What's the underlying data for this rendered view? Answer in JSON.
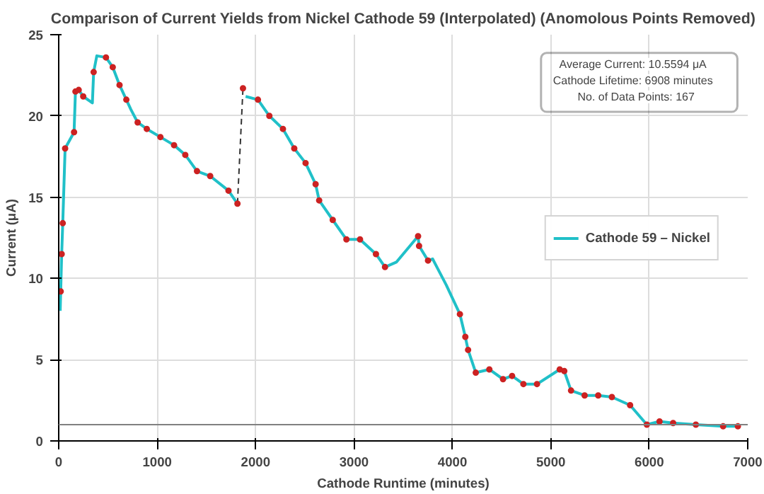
{
  "chart_data": {
    "type": "line",
    "title": "Comparison of Current Yields from Nickel Cathode 59 (Interpolated) (Anomolous Points Removed)",
    "xlabel": "Cathode Runtime (minutes)",
    "ylabel": "Current (μA)",
    "xlim": [
      0,
      7000
    ],
    "ylim": [
      0,
      25
    ],
    "xticks": [
      0,
      1000,
      2000,
      3000,
      4000,
      5000,
      6000,
      7000
    ],
    "yticks": [
      0,
      5,
      10,
      15,
      20,
      25
    ],
    "grid": true,
    "legend": "right",
    "line_style": "solid",
    "marker": "none",
    "annotations": [
      "Average Current:   10.5594   μA",
      "Cathode Lifetime:   6908   minutes",
      "No. of Data Points:   167"
    ],
    "ref_lines": [
      {
        "axis": "y",
        "value": 1,
        "color": "#808080"
      }
    ],
    "series": [
      {
        "name": "Cathode 59 – Nickel",
        "color": "#20c0c8",
        "x": [
          15,
          20,
          30,
          41,
          65,
          156,
          170,
          203,
          249,
          342,
          355,
          387,
          480,
          549,
          618,
          687,
          733,
          802,
          895,
          1033,
          1172,
          1286,
          1405,
          1539,
          1725,
          1816,
          1872,
          1899,
          2024,
          2140,
          2278,
          2393,
          2508,
          2610,
          2646,
          2784,
          2923,
          3061,
          3223,
          3315,
          3430,
          3651,
          3661,
          3752,
          3799,
          3937,
          4076,
          4131,
          4159,
          4237,
          4375,
          4514,
          4606,
          4721,
          4859,
          5090,
          5136,
          5205,
          5343,
          5481,
          5620,
          5805,
          5975,
          6104,
          6242,
          6473,
          6750,
          6900
        ],
        "values": [
          8,
          9.2,
          11.5,
          13.4,
          18.0,
          19.0,
          21.5,
          21.6,
          21.2,
          20.8,
          22.7,
          23.7,
          23.6,
          23.0,
          21.9,
          21.0,
          20.4,
          19.6,
          19.2,
          18.7,
          18.2,
          17.6,
          16.6,
          16.3,
          15.4,
          14.6,
          null,
          21.2,
          21.0,
          20.0,
          19.2,
          18.0,
          17.1,
          15.8,
          14.8,
          13.6,
          12.4,
          12.4,
          11.5,
          10.7,
          11.0,
          12.6,
          12.0,
          11.1,
          11.2,
          9.6,
          7.8,
          6.4,
          5.6,
          4.2,
          4.4,
          3.8,
          4.0,
          3.5,
          3.5,
          4.4,
          4.3,
          3.1,
          2.8,
          2.8,
          2.7,
          2.2,
          1.0,
          1.2,
          1.1,
          1.0,
          0.9,
          0.9
        ]
      },
      {
        "type": "line",
        "color": "#333333",
        "line_style": "dashed",
        "x": [
          1816,
          1872
        ],
        "values": [
          14.6,
          21.7
        ]
      },
      {
        "type": "scatter",
        "color": "#cc2222",
        "marker": "circle",
        "x": [
          20,
          30,
          41,
          65,
          156,
          170,
          203,
          249,
          355,
          480,
          549,
          618,
          687,
          802,
          895,
          1033,
          1172,
          1286,
          1405,
          1539,
          1725,
          1816,
          1872,
          2024,
          2140,
          2278,
          2393,
          2508,
          2610,
          2646,
          2784,
          2923,
          3061,
          3223,
          3315,
          3651,
          3661,
          3752,
          4076,
          4131,
          4159,
          4237,
          4375,
          4514,
          4606,
          4721,
          4859,
          5090,
          5136,
          5205,
          5343,
          5481,
          5620,
          5805,
          5975,
          6104,
          6242,
          6473,
          6750,
          6900
        ],
        "values": [
          9.2,
          11.5,
          13.4,
          18.0,
          19.0,
          21.5,
          21.6,
          21.2,
          22.7,
          23.6,
          23.0,
          21.9,
          21.0,
          19.6,
          19.2,
          18.7,
          18.2,
          17.6,
          16.6,
          16.3,
          15.4,
          14.6,
          21.7,
          21.0,
          20.0,
          19.2,
          18.0,
          17.1,
          15.8,
          14.8,
          13.6,
          12.4,
          12.4,
          11.5,
          10.7,
          12.6,
          12.0,
          11.1,
          7.8,
          6.4,
          5.6,
          4.2,
          4.4,
          3.8,
          4.0,
          3.5,
          3.5,
          4.4,
          4.3,
          3.1,
          2.8,
          2.8,
          2.7,
          2.2,
          1.0,
          1.2,
          1.1,
          1.0,
          0.9,
          0.9
        ]
      }
    ]
  }
}
